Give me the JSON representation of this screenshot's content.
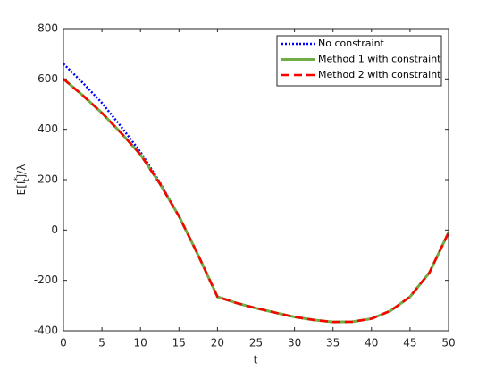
{
  "chart_data": {
    "type": "line",
    "xlabel": "t",
    "ylabel": {
      "base": "E[I",
      "sup": "*",
      "sub": "t",
      "tail": "]/λ"
    },
    "x": [
      0,
      2.5,
      5,
      7.5,
      10,
      12.5,
      15,
      17.5,
      20,
      22.5,
      25,
      27.5,
      30,
      32.5,
      35,
      37.5,
      40,
      42.5,
      45,
      47.5,
      50
    ],
    "series": [
      {
        "name": "No constraint",
        "color": "#0000ff",
        "dash": "dotted",
        "values": [
          660,
          585,
          505,
          410,
          310,
          190,
          55,
          -100,
          -265,
          -290,
          -310,
          -328,
          -345,
          -357,
          -365,
          -364,
          -352,
          -320,
          -265,
          -170,
          -10
        ]
      },
      {
        "name": "Method 1 with constraint",
        "color": "#70ad47",
        "dash": "solid",
        "values": [
          600,
          535,
          465,
          385,
          300,
          185,
          55,
          -100,
          -265,
          -290,
          -310,
          -328,
          -345,
          -357,
          -365,
          -364,
          -352,
          -320,
          -265,
          -170,
          -10
        ]
      },
      {
        "name": "Method 2 with constraint",
        "color": "#ff0000",
        "dash": "dashed",
        "values": [
          600,
          535,
          465,
          385,
          300,
          185,
          55,
          -100,
          -265,
          -290,
          -310,
          -328,
          -345,
          -357,
          -365,
          -364,
          -352,
          -320,
          -265,
          -170,
          -10
        ]
      }
    ],
    "xlim": [
      0,
      50
    ],
    "xticks": [
      0,
      5,
      10,
      15,
      20,
      25,
      30,
      35,
      40,
      45,
      50
    ],
    "ylim": [
      -400,
      800
    ],
    "yticks": [
      -400,
      -200,
      0,
      200,
      400,
      600,
      800
    ],
    "grid": false,
    "legend": "top-right"
  }
}
